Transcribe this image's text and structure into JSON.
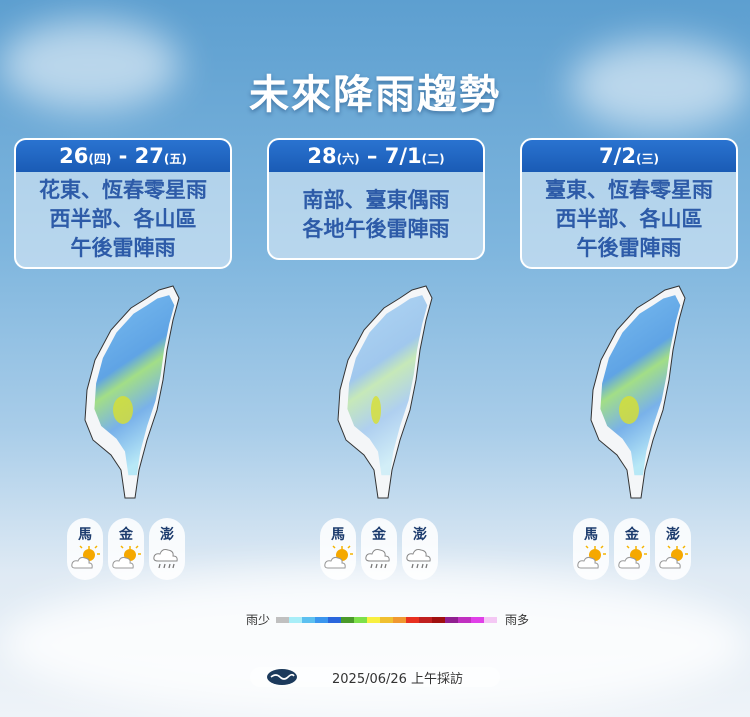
{
  "title": "未來降雨趨勢",
  "panels": [
    {
      "date_a": "26",
      "day_a": "(四)",
      "sep": " - ",
      "date_b": "27",
      "day_b": "(五)",
      "lines": [
        "花東、恆春零星雨",
        "西半部、各山區",
        "午後雷陣雨"
      ],
      "islands": [
        {
          "name": "馬",
          "icon": "partly-sunny"
        },
        {
          "name": "金",
          "icon": "partly-sunny"
        },
        {
          "name": "澎",
          "icon": "rain"
        }
      ]
    },
    {
      "date_a": "28",
      "day_a": "(六)",
      "sep": " – ",
      "date_b": "7/1",
      "day_b": "(二)",
      "lines": [
        "南部、臺東偶雨",
        "各地午後雷陣雨"
      ],
      "islands": [
        {
          "name": "馬",
          "icon": "partly-sunny"
        },
        {
          "name": "金",
          "icon": "rain"
        },
        {
          "name": "澎",
          "icon": "rain"
        }
      ]
    },
    {
      "date_a": "7/2",
      "day_a": "(三)",
      "sep": "",
      "date_b": "",
      "day_b": "",
      "lines": [
        "臺東、恆春零星雨",
        "西半部、各山區",
        "午後雷陣雨"
      ],
      "islands": [
        {
          "name": "馬",
          "icon": "partly-sunny"
        },
        {
          "name": "金",
          "icon": "partly-sunny"
        },
        {
          "name": "澎",
          "icon": "partly-sunny"
        }
      ]
    }
  ],
  "legend": {
    "low": "雨少",
    "high": "雨多",
    "colors": [
      "#c0c0c0",
      "#a8eef8",
      "#5cc0f0",
      "#3b96ee",
      "#2a66dc",
      "#4a9a2a",
      "#7de04a",
      "#f8f040",
      "#f0c030",
      "#f09830",
      "#e83020",
      "#c02020",
      "#a01010",
      "#902090",
      "#c030c0",
      "#e040e8",
      "#f4c8f4"
    ]
  },
  "footer": {
    "text": "2025/06/26 上午採訪"
  }
}
